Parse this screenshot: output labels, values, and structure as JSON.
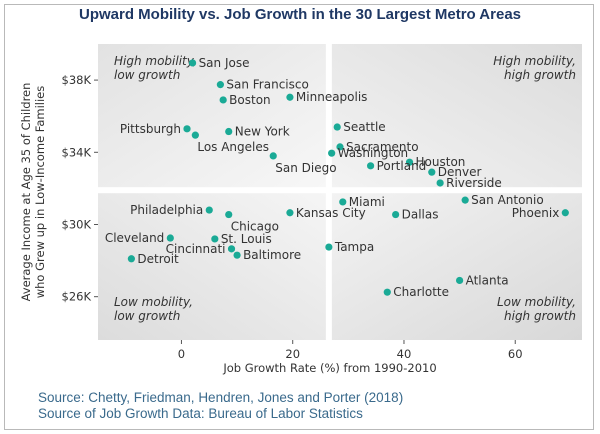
{
  "chart_data": {
    "type": "scatter",
    "title": "Upward Mobility vs. Job Growth in the 30 Largest Metro Areas",
    "xlabel": "Job Growth Rate (%) from 1990-2010",
    "ylabel": "Average Income at Age 35 of Children\nwho Grew up in Low-Income Families",
    "xlim": [
      -15,
      72
    ],
    "ylim": [
      23600,
      40000
    ],
    "x_ticks": [
      0,
      20,
      40,
      60
    ],
    "x_tick_labels": [
      "0",
      "20",
      "40",
      "60"
    ],
    "y_ticks": [
      26000,
      30000,
      34000,
      38000
    ],
    "y_tick_labels": [
      "$26K",
      "$30K",
      "$34K",
      "$38K"
    ],
    "quadrant_split": {
      "x": 26.5,
      "y": 31900
    },
    "quadrant_labels": {
      "top_left": "High mobility,\nlow growth",
      "top_right": "High mobility,\nhigh growth",
      "bottom_left": "Low mobility,\nlow growth",
      "bottom_right": "Low mobility,\nhigh growth"
    },
    "series": [
      {
        "points": [
          {
            "label": "San Jose",
            "x": 2,
            "y": 38950,
            "pos": "right"
          },
          {
            "label": "San Francisco",
            "x": 7,
            "y": 37750,
            "pos": "right"
          },
          {
            "label": "Boston",
            "x": 7.5,
            "y": 36900,
            "pos": "right"
          },
          {
            "label": "Minneapolis",
            "x": 19.5,
            "y": 37050,
            "pos": "right"
          },
          {
            "label": "Pittsburgh",
            "x": 1,
            "y": 35300,
            "pos": "left"
          },
          {
            "label": "New York",
            "x": 8.5,
            "y": 35150,
            "pos": "right"
          },
          {
            "label": "Los Angeles",
            "x": 2.5,
            "y": 34950,
            "pos": "below"
          },
          {
            "label": "Seattle",
            "x": 28,
            "y": 35400,
            "pos": "right"
          },
          {
            "label": "Sacramento",
            "x": 28.5,
            "y": 34300,
            "pos": "right"
          },
          {
            "label": "Washington",
            "x": 27,
            "y": 33950,
            "pos": "right"
          },
          {
            "label": "San Diego",
            "x": 16.5,
            "y": 33800,
            "pos": "below"
          },
          {
            "label": "Houston",
            "x": 41,
            "y": 33450,
            "pos": "right"
          },
          {
            "label": "Portland",
            "x": 34,
            "y": 33250,
            "pos": "right"
          },
          {
            "label": "Denver",
            "x": 45,
            "y": 32900,
            "pos": "right"
          },
          {
            "label": "Riverside",
            "x": 46.5,
            "y": 32300,
            "pos": "right"
          },
          {
            "label": "Miami",
            "x": 29,
            "y": 31250,
            "pos": "right"
          },
          {
            "label": "San Antonio",
            "x": 51,
            "y": 31350,
            "pos": "right"
          },
          {
            "label": "Phoenix",
            "x": 69,
            "y": 30650,
            "pos": "left"
          },
          {
            "label": "Philadelphia",
            "x": 5,
            "y": 30800,
            "pos": "left"
          },
          {
            "label": "Chicago",
            "x": 8.5,
            "y": 30550,
            "pos": "below"
          },
          {
            "label": "Kansas City",
            "x": 19.5,
            "y": 30650,
            "pos": "right"
          },
          {
            "label": "Dallas",
            "x": 38.5,
            "y": 30550,
            "pos": "right"
          },
          {
            "label": "Cleveland",
            "x": -2,
            "y": 29250,
            "pos": "left"
          },
          {
            "label": "St. Louis",
            "x": 6,
            "y": 29200,
            "pos": "right"
          },
          {
            "label": "Cincinnati",
            "x": 9,
            "y": 28650,
            "pos": "left"
          },
          {
            "label": "Baltimore",
            "x": 10,
            "y": 28300,
            "pos": "right"
          },
          {
            "label": "Detroit",
            "x": -9,
            "y": 28100,
            "pos": "right"
          },
          {
            "label": "Tampa",
            "x": 26.5,
            "y": 28750,
            "pos": "right"
          },
          {
            "label": "Atlanta",
            "x": 50,
            "y": 26900,
            "pos": "right"
          },
          {
            "label": "Charlotte",
            "x": 37,
            "y": 26250,
            "pos": "right"
          }
        ]
      }
    ],
    "colors": {
      "point": "#1aaa96",
      "title": "#1f3864",
      "source": "#3a6a8c",
      "quadrant_light": "#f0f0f0",
      "quadrant_dark": "#e0e0e0"
    }
  },
  "sources": {
    "line1": "Source: Chetty, Friedman, Hendren, Jones and Porter (2018)",
    "line2": "Source of Job Growth Data: Bureau of Labor Statistics"
  }
}
